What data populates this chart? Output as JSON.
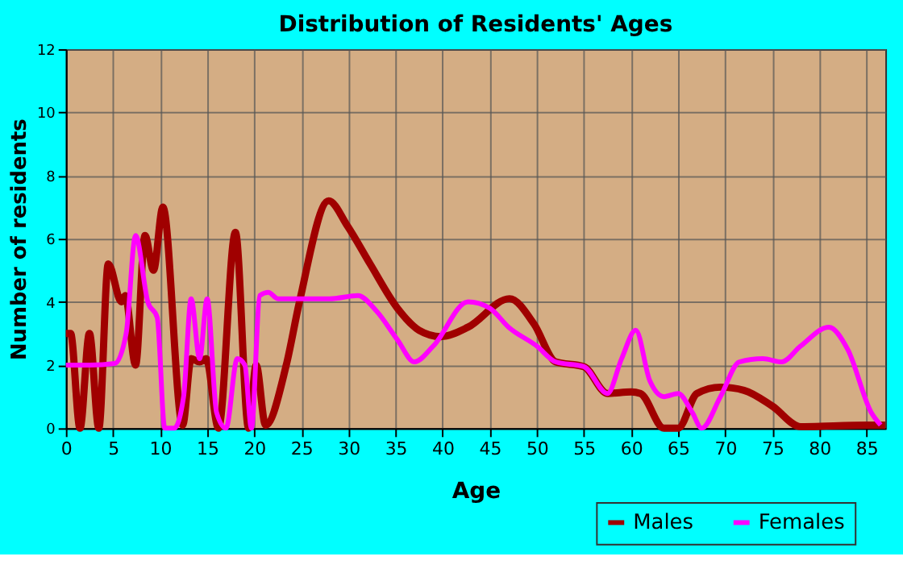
{
  "chart_data": {
    "type": "line",
    "title": "Distribution of Residents' Ages",
    "xlabel": "Age",
    "ylabel": "Number of residents",
    "xlim": [
      0,
      87
    ],
    "xticks": [
      0,
      5,
      10,
      15,
      20,
      25,
      30,
      35,
      40,
      45,
      50,
      55,
      60,
      65,
      70,
      75,
      80,
      85
    ],
    "ylim": [
      0,
      12
    ],
    "yticks": [
      0,
      2,
      4,
      6,
      8,
      10,
      12
    ],
    "grid": true,
    "legend": "bottom right",
    "line_style": "solid",
    "marker": "none",
    "series": [
      {
        "name": "Males",
        "color": "#a00000",
        "x": [
          0,
          0.5,
          1.5,
          2.5,
          3.5,
          4.5,
          5.9,
          6.3,
          7.4,
          8.4,
          9.3,
          10.3,
          12.4,
          13.3,
          14.2,
          14.9,
          16.2,
          18,
          19.4,
          20.2,
          21.2,
          23.4,
          24.8,
          27.9,
          29.9,
          32.3,
          35.2,
          37.5,
          39.8,
          42.7,
          47.1,
          49.7,
          52,
          55,
          57.5,
          60,
          61,
          63.5,
          65,
          67,
          69.5,
          72,
          75,
          78,
          85,
          87
        ],
        "values": [
          3,
          3,
          0,
          3,
          0,
          5.2,
          4,
          4.2,
          2,
          6.1,
          5,
          7,
          0.1,
          2.2,
          2.1,
          2.2,
          0,
          6.2,
          0,
          2,
          0.1,
          2,
          4,
          7.2,
          6.4,
          5.2,
          3.8,
          3.1,
          2.9,
          3.2,
          4.1,
          3.3,
          2.1,
          1.95,
          1.1,
          1.15,
          1.1,
          0,
          0,
          1.1,
          1.3,
          1.2,
          0.7,
          0.05,
          0.1,
          0.1
        ]
      },
      {
        "name": "Females",
        "color": "#ff00ff",
        "x": [
          0,
          2.5,
          5.2,
          6.4,
          7.4,
          8.7,
          9.7,
          10.5,
          11.5,
          12.5,
          13.3,
          14.2,
          15,
          16,
          17,
          18.2,
          19,
          19.7,
          20.6,
          21.5,
          22.5,
          25,
          28,
          31,
          33,
          35.2,
          37,
          39,
          42.7,
          45,
          47,
          50,
          52,
          55,
          57.5,
          59,
          60.5,
          62,
          63.5,
          65,
          66.5,
          67.5,
          69.5,
          71.5,
          74,
          76,
          78,
          81,
          83,
          85.5,
          86.5
        ],
        "values": [
          2,
          2,
          2.05,
          3,
          6.1,
          4,
          3.5,
          0,
          0,
          1,
          4.1,
          2.2,
          4.1,
          0.5,
          0,
          2.2,
          2,
          0,
          4.2,
          4.3,
          4.1,
          4.1,
          4.1,
          4.2,
          3.7,
          2.8,
          2.1,
          2.6,
          4,
          3.8,
          3.2,
          2.6,
          2.1,
          1.95,
          1.1,
          2.2,
          3.1,
          1.5,
          1,
          1.1,
          0.5,
          0,
          1,
          2.1,
          2.2,
          2.1,
          2.6,
          3.2,
          2.5,
          0.5,
          0.1
        ]
      }
    ]
  }
}
